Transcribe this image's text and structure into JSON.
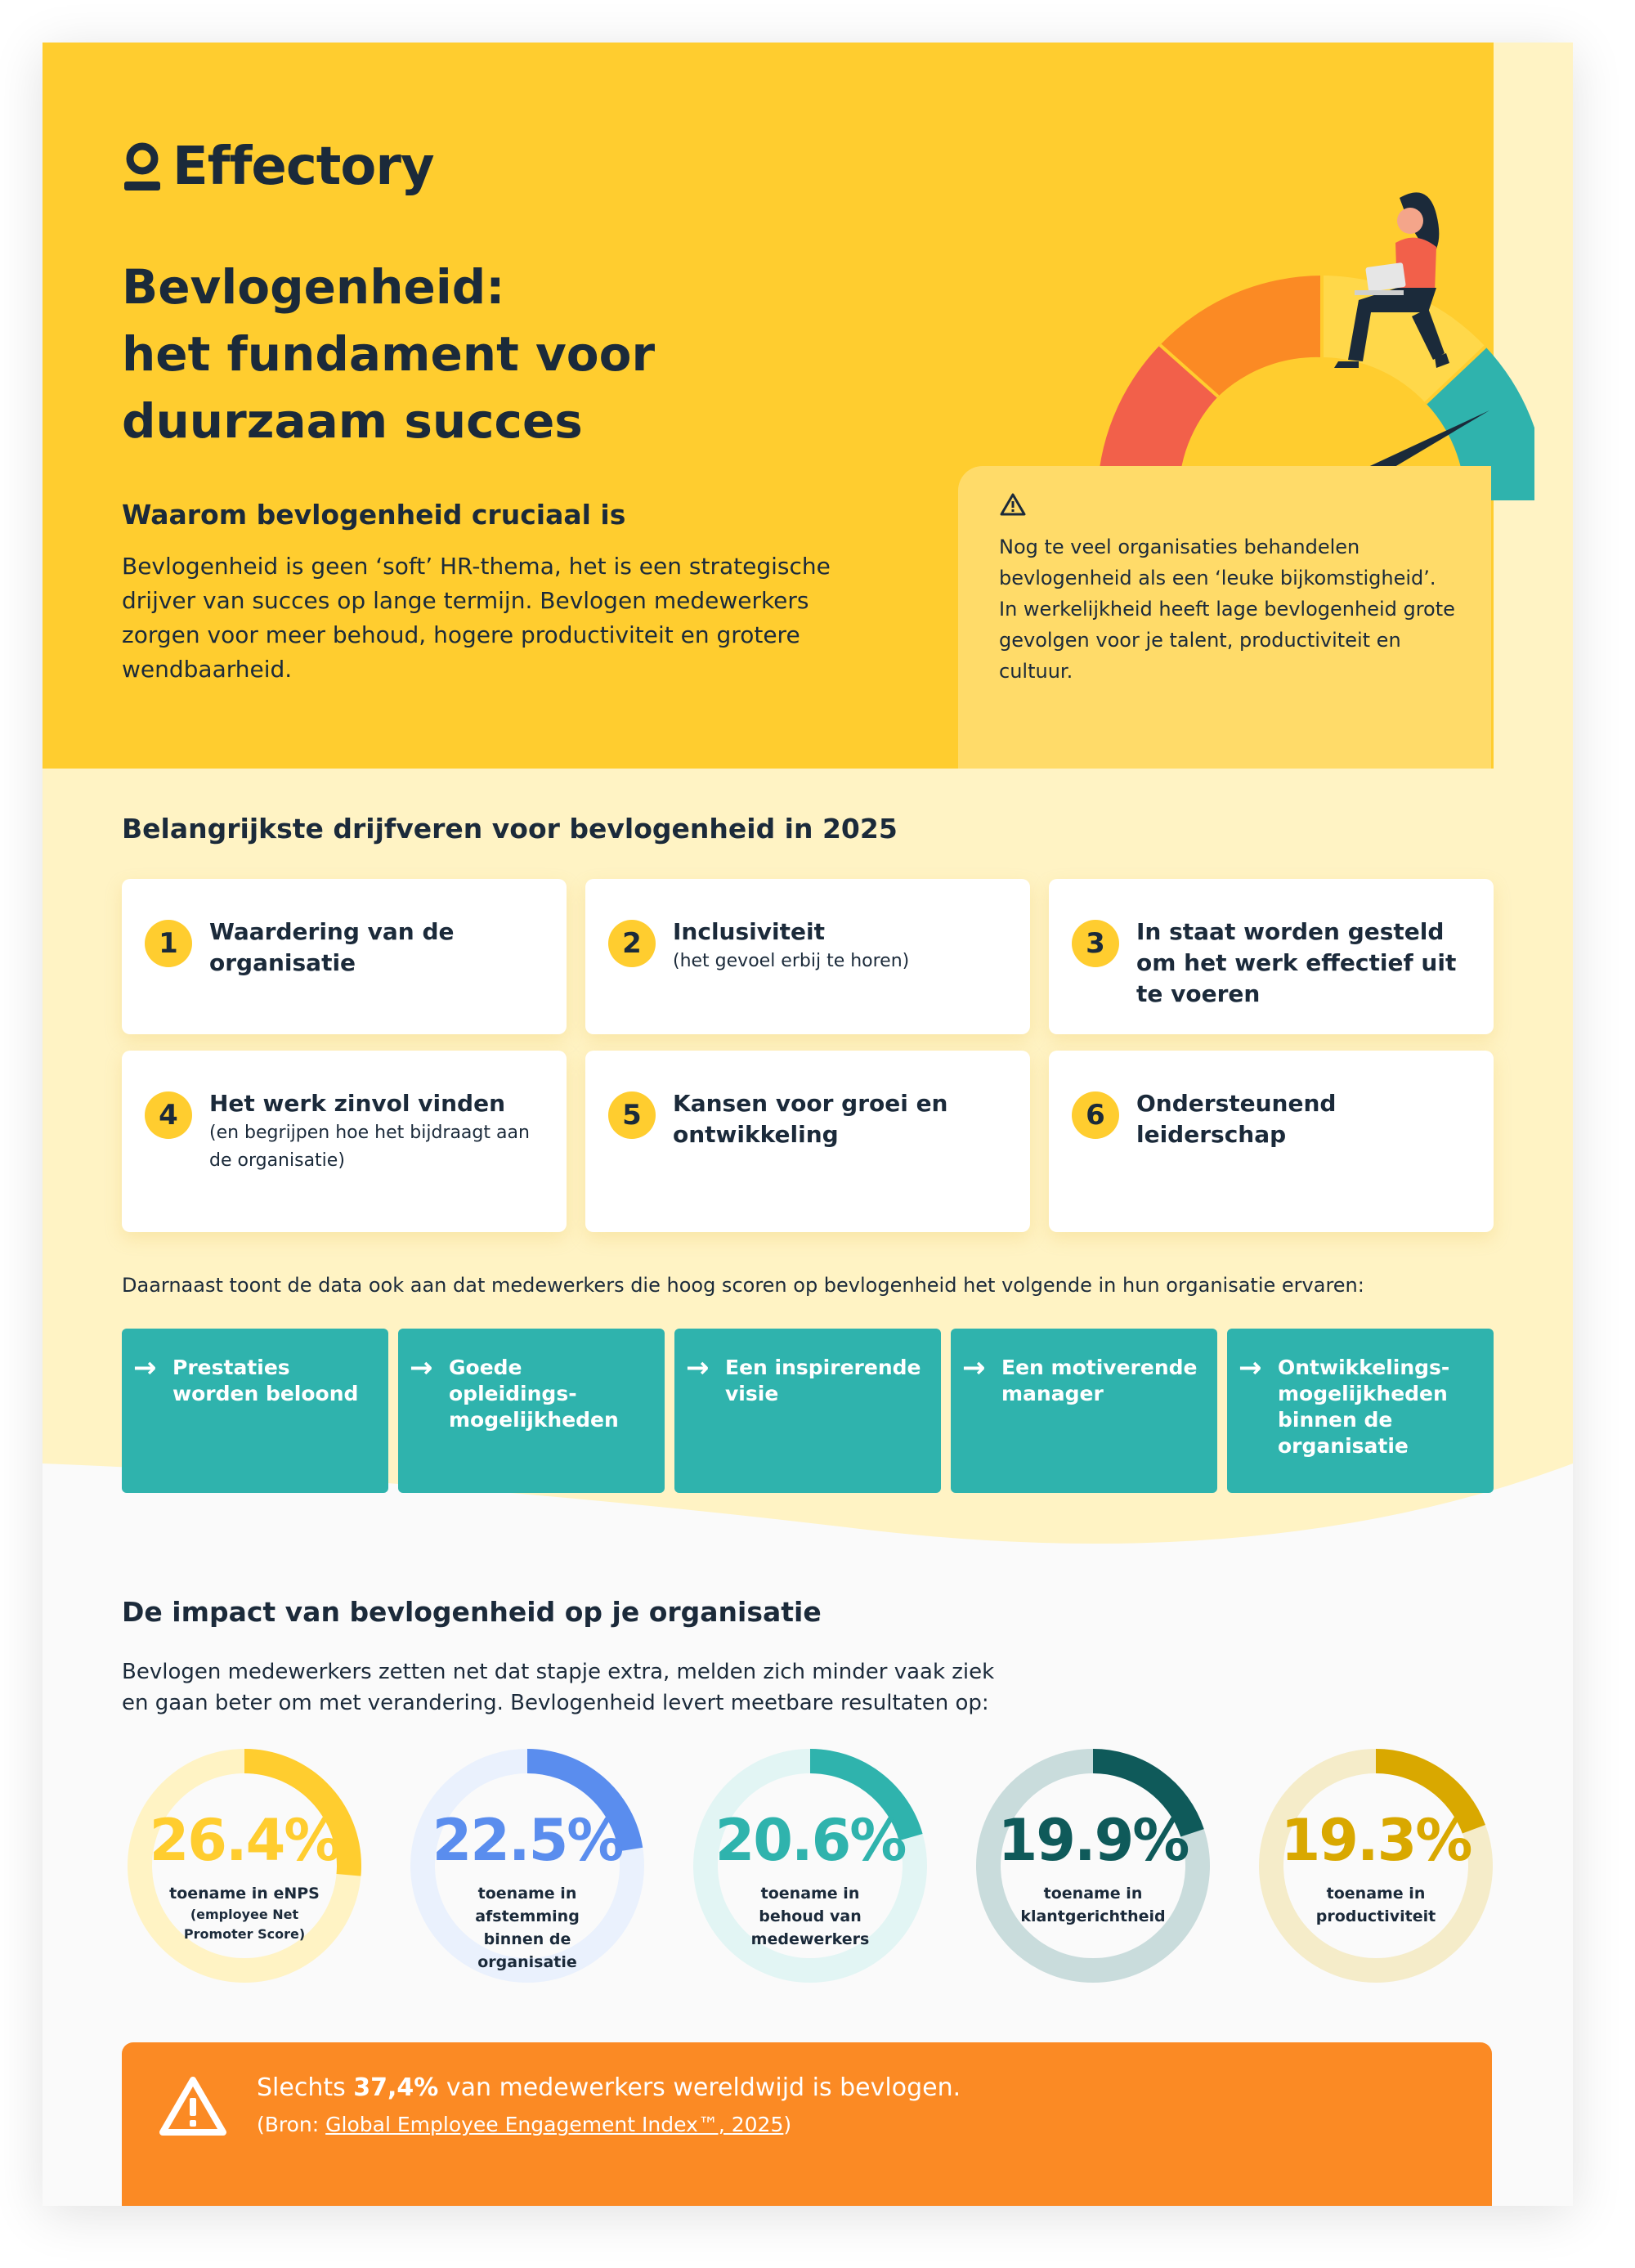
{
  "brand": {
    "name": "Effectory"
  },
  "hero": {
    "title": "Bevlogenheid:\nhet fundament voor\nduurzaam succes",
    "why_heading": "Waarom bevlogenheid cruciaal is",
    "why_text": "Bevlogenheid is geen ‘soft’ HR-thema, het is een strategische drijver van succes op lange termijn. Bevlogen medewerkers zorgen voor meer behoud, hogere productiviteit en grotere wendbaarheid.",
    "warning_text": "Nog te veel organisaties behandelen bevlogenheid als een ‘leuke bijkomstigheid’. In werkelijkheid heeft lage bevlogenheid grote gevolgen voor je talent, productiviteit en cultuur."
  },
  "drivers": {
    "heading": "Belangrijkste drijfveren voor bevlogenheid in 2025",
    "items": [
      {
        "num": "1",
        "title": "Waardering van de organisatie",
        "sub": ""
      },
      {
        "num": "2",
        "title": "Inclusiviteit",
        "sub": "(het gevoel erbij te horen)"
      },
      {
        "num": "3",
        "title": "In staat worden gesteld om het werk effectief uit te voeren",
        "sub": ""
      },
      {
        "num": "4",
        "title": "Het werk zinvol vinden",
        "sub": "(en begrijpen hoe het bijdraagt aan de organisatie)"
      },
      {
        "num": "5",
        "title": "Kansen voor groei en ontwikkeling",
        "sub": ""
      },
      {
        "num": "6",
        "title": "Ondersteunend leiderschap",
        "sub": ""
      }
    ],
    "extra_text": "Daarnaast toont de data ook aan dat medewerkers die hoog scoren op bevlogenheid het volgende in hun organisatie ervaren:",
    "experiences": [
      "Prestaties worden beloond",
      "Goede opleidings-mogelijkheden",
      "Een inspirerende visie",
      "Een motiverende manager",
      "Ontwikkelings-mogelijkheden binnen de organisatie"
    ]
  },
  "impact": {
    "heading": "De impact van bevlogenheid op je organisatie",
    "text": "Bevlogen medewerkers zetten net dat stapje extra, melden zich minder vaak ziek en gaan beter om met verandering. Bevlogenheid levert meetbare resultaten op:",
    "stats": [
      {
        "value": "26.4%",
        "pct": 26.4,
        "label": "toename in eNPS",
        "sub": "(employee Net Promoter Score)",
        "color": "#ffcd2f",
        "track": "#fff3c4"
      },
      {
        "value": "22.5%",
        "pct": 22.5,
        "label": "toename in afstemming binnen de organisatie",
        "sub": "",
        "color": "#5a8dee",
        "track": "#eaf1fd"
      },
      {
        "value": "20.6%",
        "pct": 20.6,
        "label": "toename in behoud van medewerkers",
        "sub": "",
        "color": "#2fb3ad",
        "track": "#e2f5f4"
      },
      {
        "value": "19.9%",
        "pct": 19.9,
        "label": "toename in klantgerichtheid",
        "sub": "",
        "color": "#0f5a5a",
        "track": "#c9dcdc"
      },
      {
        "value": "19.3%",
        "pct": 19.3,
        "label": "toename in productiviteit",
        "sub": "",
        "color": "#d9a800",
        "track": "#f5ecc9"
      }
    ]
  },
  "banner": {
    "prefix": "Slechts ",
    "highlight": "37,4%",
    "suffix": " van medewerkers wereldwijd is bevlogen.",
    "source_prefix": "(Bron: ",
    "source_link": "Global Employee Engagement Index™, 2025",
    "source_suffix": ")"
  },
  "colors": {
    "yellow": "#ffcd2f",
    "teal": "#2fb3ad",
    "orange": "#fb8a24",
    "navy": "#1b2a3a"
  }
}
